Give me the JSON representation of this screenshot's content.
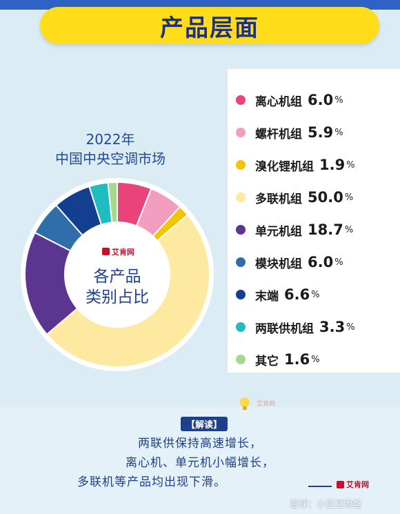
{
  "banner": {
    "title": "产品层面"
  },
  "chart_data": {
    "type": "pie",
    "title_lines": [
      "2022年",
      "中国中央空调市场"
    ],
    "center_lines": [
      "各产品",
      "类别占比"
    ],
    "center_logo": "艾肯网",
    "unit": "%",
    "categories": [
      "离心机组",
      "螺杆机组",
      "溴化锂机组",
      "多联机组",
      "单元机组",
      "模块机组",
      "末端",
      "两联供机组",
      "其它"
    ],
    "values": [
      6.0,
      5.9,
      1.9,
      50.0,
      18.7,
      6.0,
      6.6,
      3.3,
      1.6
    ],
    "value_labels": [
      "6.0",
      "5.9",
      "1.9",
      "50.0",
      "18.7",
      "6.0",
      "6.6",
      "3.3",
      "1.6"
    ],
    "colors": [
      "#e8437a",
      "#f29cbf",
      "#f5c400",
      "#fde9a0",
      "#5b3590",
      "#2f6eab",
      "#123f8f",
      "#1fbcc0",
      "#a6d98b"
    ],
    "legend_position": "right"
  },
  "note": {
    "tag": "【解读】",
    "lines": [
      "两联供保持高速增长，",
      "离心机、单元机小幅增长，",
      "多联机等产品均出现下滑。"
    ],
    "logo": "艾肯网"
  },
  "watermarks": {
    "small": "艾肯网",
    "bottom": "雪球：小豆豆她爸"
  }
}
